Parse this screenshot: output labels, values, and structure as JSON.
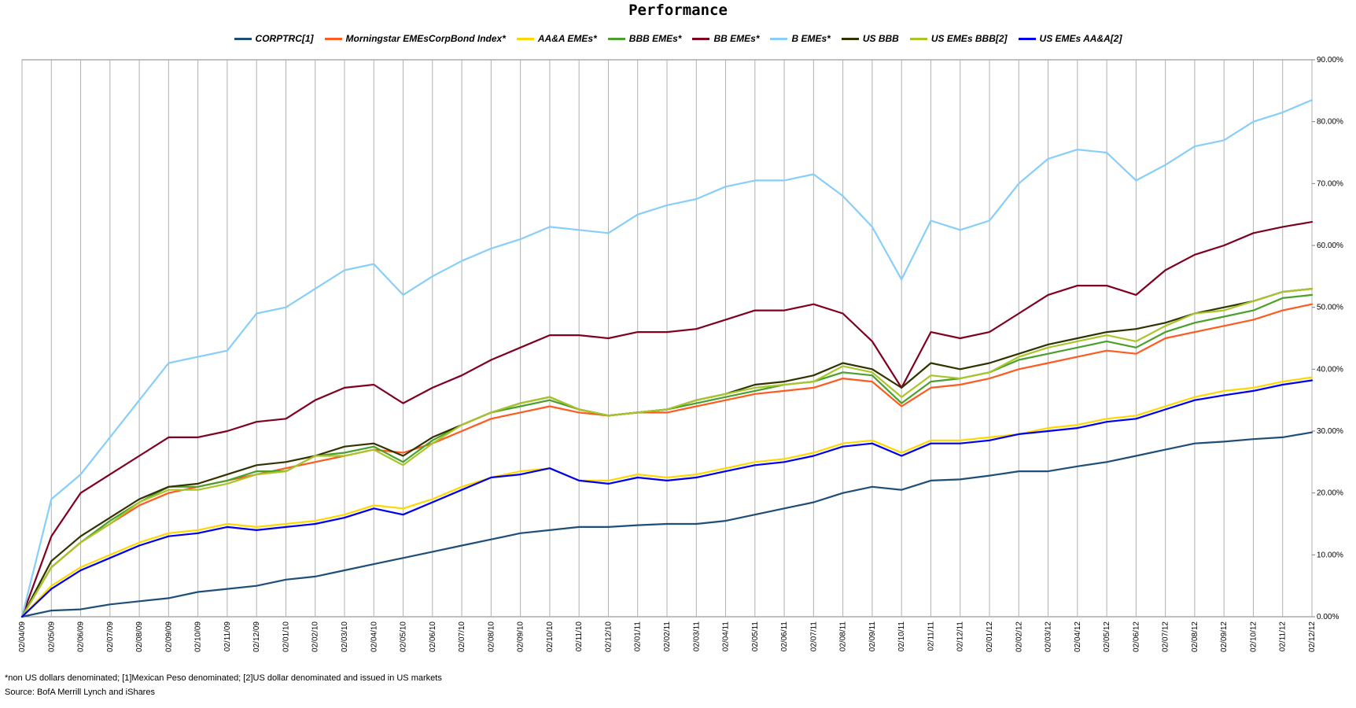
{
  "chart_data": {
    "type": "line",
    "title": "Performance",
    "xlabel": "",
    "ylabel": "",
    "ylim": [
      0,
      90
    ],
    "y_ticks": [
      "0.00%",
      "10.00%",
      "20.00%",
      "30.00%",
      "40.00%",
      "50.00%",
      "60.00%",
      "70.00%",
      "80.00%",
      "90.00%"
    ],
    "y_axis_side": "right",
    "grid": true,
    "legend_position": "top",
    "categories": [
      "02/04/09",
      "02/05/09",
      "02/06/09",
      "02/07/09",
      "02/08/09",
      "02/09/09",
      "02/10/09",
      "02/11/09",
      "02/12/09",
      "02/01/10",
      "02/02/10",
      "02/03/10",
      "02/04/10",
      "02/05/10",
      "02/06/10",
      "02/07/10",
      "02/08/10",
      "02/09/10",
      "02/10/10",
      "02/11/10",
      "02/12/10",
      "02/01/11",
      "02/02/11",
      "02/03/11",
      "02/04/11",
      "02/05/11",
      "02/06/11",
      "02/07/11",
      "02/08/11",
      "02/09/11",
      "02/10/11",
      "02/11/11",
      "02/12/11",
      "02/01/12",
      "02/02/12",
      "02/03/12",
      "02/04/12",
      "02/05/12",
      "02/06/12",
      "02/07/12",
      "02/08/12",
      "02/09/12",
      "02/10/12",
      "02/11/12",
      "02/12/12"
    ],
    "series": [
      {
        "name": "CORPTRC[1]",
        "color": "#1f4e79",
        "values": [
          0,
          1,
          1.2,
          2,
          2.5,
          3,
          4,
          4.5,
          5,
          6,
          6.5,
          7.5,
          8.5,
          9.5,
          10.5,
          11.5,
          12.5,
          13.5,
          14,
          14.5,
          14.5,
          14.8,
          15,
          15,
          15.5,
          16.5,
          17.5,
          18.5,
          20,
          21,
          20.5,
          22,
          22.2,
          22.8,
          23.5,
          23.5,
          24.3,
          25,
          26,
          27,
          28,
          28.3,
          28.7,
          29,
          29.8
        ]
      },
      {
        "name": "Morningstar EMEsCorpBond Index*",
        "color": "#ff5a1f",
        "values": [
          0,
          8,
          12,
          15,
          18,
          20,
          21,
          22,
          23,
          24,
          25,
          26,
          27,
          26.5,
          28,
          30,
          32,
          33,
          34,
          33,
          32.5,
          33,
          33,
          34,
          35,
          36,
          36.5,
          37,
          38.5,
          38,
          34,
          37,
          37.5,
          38.5,
          40,
          41,
          42,
          43,
          42.5,
          45,
          46,
          47,
          48,
          49.5,
          50.5
        ]
      },
      {
        "name": "AA&A EMEs*",
        "color": "#ffd700",
        "values": [
          0,
          5,
          8,
          10,
          12,
          13.5,
          14,
          15,
          14.5,
          15,
          15.5,
          16.5,
          18,
          17.5,
          19,
          21,
          22.5,
          23.5,
          24,
          22,
          22,
          23,
          22.5,
          23,
          24,
          25,
          25.5,
          26.5,
          28,
          28.5,
          26.5,
          28.5,
          28.5,
          29,
          29.5,
          30.5,
          31,
          32,
          32.5,
          34,
          35.5,
          36.5,
          37,
          38,
          38.7
        ]
      },
      {
        "name": "BBB EMEs*",
        "color": "#4aa02c",
        "values": [
          0,
          8,
          12,
          15.5,
          18.5,
          21,
          21,
          22,
          23.5,
          23.5,
          26,
          26.5,
          27.5,
          25,
          28.5,
          31,
          33,
          34,
          35,
          33.5,
          32.5,
          33,
          33.5,
          34.5,
          35.5,
          36.5,
          37.5,
          38,
          39.5,
          39,
          34.5,
          38,
          38.5,
          39.5,
          41.5,
          42.5,
          43.5,
          44.5,
          43.5,
          46,
          47.5,
          48.5,
          49.5,
          51.5,
          52
        ]
      },
      {
        "name": "BB EMEs*",
        "color": "#800020",
        "values": [
          0,
          13,
          20,
          23,
          26,
          29,
          29,
          30,
          31.5,
          32,
          35,
          37,
          37.5,
          34.5,
          37,
          39,
          41.5,
          43.5,
          45.5,
          45.5,
          45,
          46,
          46,
          46.5,
          48,
          49.5,
          49.5,
          50.5,
          49,
          44.5,
          37,
          46,
          45,
          46,
          49,
          52,
          53.5,
          53.5,
          52,
          56,
          58.5,
          60,
          62,
          63,
          63.8
        ]
      },
      {
        "name": "B EMEs*",
        "color": "#87cefa",
        "values": [
          0,
          19,
          23,
          29,
          35,
          41,
          42,
          43,
          49,
          50,
          53,
          56,
          57,
          52,
          55,
          57.5,
          59.5,
          61,
          63,
          62.5,
          62,
          65,
          66.5,
          67.5,
          69.5,
          70.5,
          70.5,
          71.5,
          68,
          63,
          54.5,
          64,
          62.5,
          64,
          70,
          74,
          75.5,
          75,
          70.5,
          73,
          76,
          77,
          80,
          81.5,
          83.5
        ]
      },
      {
        "name": "US BBB",
        "color": "#333300",
        "values": [
          0,
          9,
          13,
          16,
          19,
          21,
          21.5,
          23,
          24.5,
          25,
          26,
          27.5,
          28,
          26,
          29,
          31,
          33,
          34.5,
          35.5,
          33.5,
          32.5,
          33,
          33.5,
          35,
          36,
          37.5,
          38,
          39,
          41,
          40,
          37,
          41,
          40,
          41,
          42.5,
          44,
          45,
          46,
          46.5,
          47.5,
          49,
          50,
          51,
          52.5,
          53
        ]
      },
      {
        "name": "US EMEs BBB[2]",
        "color": "#a8c62a",
        "values": [
          0,
          8,
          12,
          15,
          18.5,
          20.5,
          20.5,
          21.5,
          23,
          23.5,
          26,
          26,
          27,
          24.5,
          28,
          31,
          33,
          34.5,
          35.5,
          33.5,
          32.5,
          33,
          33.5,
          35,
          36,
          37,
          37.5,
          38,
          40.5,
          39.5,
          35.5,
          39,
          38.5,
          39.5,
          42,
          43.5,
          44.5,
          45.5,
          44.5,
          47,
          49,
          49.5,
          51,
          52.5,
          53
        ]
      },
      {
        "name": "US EMEs AA&A[2]",
        "color": "#0000ee",
        "values": [
          0,
          4.5,
          7.5,
          9.5,
          11.5,
          13,
          13.5,
          14.5,
          14,
          14.5,
          15,
          16,
          17.5,
          16.5,
          18.5,
          20.5,
          22.5,
          23,
          24,
          22,
          21.5,
          22.5,
          22,
          22.5,
          23.5,
          24.5,
          25,
          26,
          27.5,
          28,
          26,
          28,
          28,
          28.5,
          29.5,
          30,
          30.5,
          31.5,
          32,
          33.5,
          35,
          35.8,
          36.5,
          37.5,
          38.2
        ]
      }
    ]
  },
  "footnote": "*non US dollars denominated; [1]Mexican Peso denominated; [2]US dollar denominated and issued in US markets",
  "source": "Source: BofA Merrill Lynch and iShares"
}
